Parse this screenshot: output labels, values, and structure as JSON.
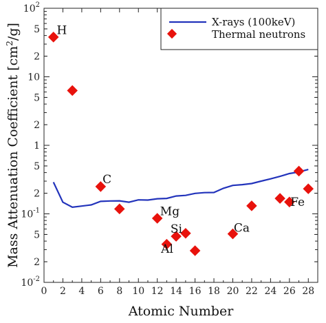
{
  "chart_data": {
    "type": "scatter",
    "xlabel": "Atomic Number",
    "ylabel": "Mass Attenuation Coefficient [cm²/g]",
    "xlim": [
      0,
      29
    ],
    "ylim": [
      0.01,
      100
    ],
    "yscale": "log",
    "x_ticks": [
      0,
      2,
      4,
      6,
      8,
      10,
      12,
      14,
      16,
      18,
      20,
      22,
      24,
      26,
      28
    ],
    "y_ticks": [
      {
        "value": 0.01,
        "base": "10",
        "exp": "-2"
      },
      {
        "value": 0.02,
        "label": "2"
      },
      {
        "value": 0.05,
        "label": "5"
      },
      {
        "value": 0.1,
        "base": "10",
        "exp": "-1"
      },
      {
        "value": 0.2,
        "label": "2"
      },
      {
        "value": 0.5,
        "label": "5"
      },
      {
        "value": 1,
        "label": "1"
      },
      {
        "value": 2,
        "label": "2"
      },
      {
        "value": 5,
        "label": "5"
      },
      {
        "value": 10,
        "label": "10"
      },
      {
        "value": 20,
        "label": "2"
      },
      {
        "value": 50,
        "label": "5"
      },
      {
        "value": 100,
        "base": "10",
        "exp": "2"
      }
    ],
    "legend": "top-right",
    "series": [
      {
        "name": "X-rays (100keV)",
        "kind": "line",
        "color": "#2233bb",
        "x": [
          1,
          2,
          3,
          4,
          5,
          6,
          7,
          8,
          9,
          10,
          11,
          12,
          13,
          14,
          15,
          16,
          17,
          18,
          19,
          20,
          21,
          22,
          23,
          24,
          25,
          26,
          27,
          28
        ],
        "y": [
          0.29,
          0.148,
          0.125,
          0.13,
          0.135,
          0.152,
          0.154,
          0.155,
          0.148,
          0.16,
          0.159,
          0.166,
          0.168,
          0.182,
          0.186,
          0.199,
          0.204,
          0.205,
          0.236,
          0.26,
          0.267,
          0.277,
          0.3,
          0.324,
          0.352,
          0.387,
          0.408,
          0.444
        ]
      },
      {
        "name": "Thermal neutrons",
        "kind": "scatter",
        "color": "#e8120c",
        "x": [
          1,
          3,
          6,
          8,
          12,
          13,
          14,
          15,
          16,
          20,
          22,
          25,
          26,
          27,
          28
        ],
        "y": [
          38,
          6.3,
          0.25,
          0.118,
          0.086,
          0.036,
          0.047,
          0.052,
          0.029,
          0.051,
          0.131,
          0.168,
          0.149,
          0.42,
          0.232
        ]
      }
    ],
    "annotations": [
      {
        "text": "H",
        "x": 1.35,
        "y": 42
      },
      {
        "text": "C",
        "x": 6.2,
        "y": 0.28
      },
      {
        "text": "Mg",
        "x": 12.3,
        "y": 0.095
      },
      {
        "text": "Si",
        "x": 13.4,
        "y": 0.053
      },
      {
        "text": "Al",
        "x": 12.4,
        "y": 0.027
      },
      {
        "text": "Ca",
        "x": 20.1,
        "y": 0.055
      },
      {
        "text": "Fe",
        "x": 26.1,
        "y": 0.13
      }
    ]
  }
}
